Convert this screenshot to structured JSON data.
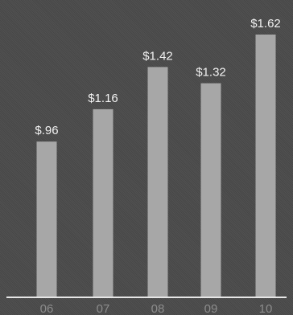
{
  "chart_data": {
    "type": "bar",
    "categories": [
      "06",
      "07",
      "08",
      "09",
      "10"
    ],
    "values": [
      0.96,
      1.16,
      1.42,
      1.32,
      1.62
    ],
    "data_labels": [
      "$.96",
      "$1.16",
      "$1.42",
      "$1.32",
      "$1.62"
    ],
    "ylim": [
      0,
      1.8
    ],
    "grid": false,
    "legend": "none",
    "colors": {
      "background": "#4b4b4b",
      "bar": "#a7a7a7",
      "label": "#f2f2f2",
      "tick": "#8c8c8c",
      "baseline": "#e6e6e6"
    }
  }
}
